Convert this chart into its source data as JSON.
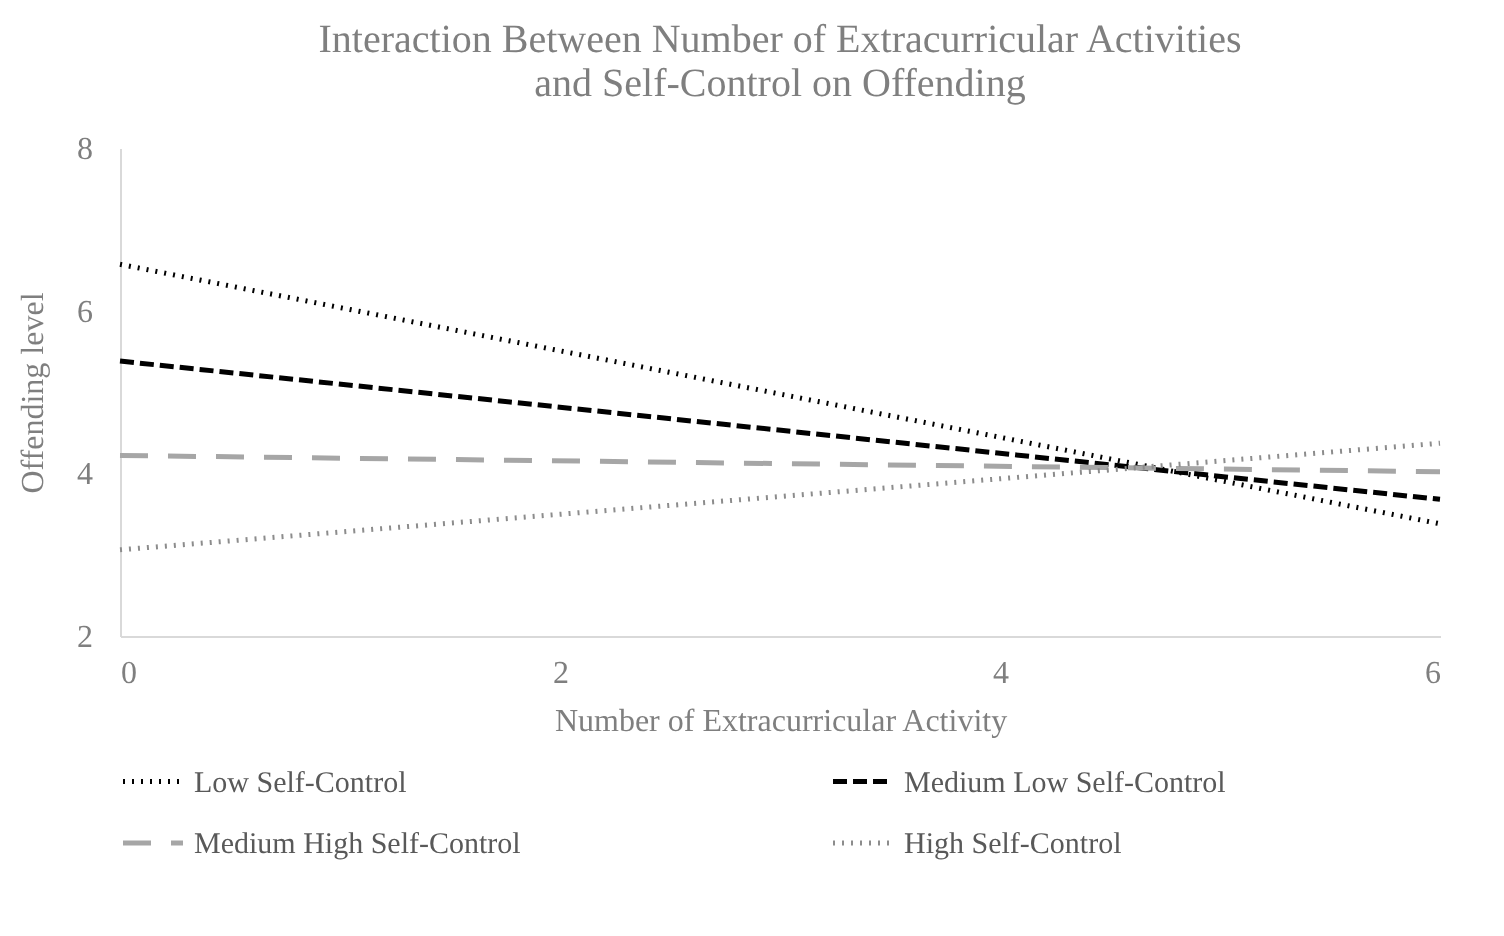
{
  "chart_data": {
    "type": "line",
    "title": "Interaction Between Number of Extracurricular Activities and Self-Control on Offending",
    "xlabel": "Number of Extracurricular Activity",
    "ylabel": "Offending level",
    "x": [
      0,
      6
    ],
    "xlim": [
      0,
      6
    ],
    "xticks": [
      0,
      2,
      4,
      6
    ],
    "ylim": [
      2,
      8
    ],
    "yticks": [
      2,
      4,
      6,
      8
    ],
    "grid": false,
    "legend": "bottom",
    "marker": "none",
    "series": [
      {
        "name": "Low Self-Control",
        "color": "#000000",
        "line_style": "dotted",
        "values": [
          6.57,
          3.38
        ]
      },
      {
        "name": "Medium Low Self-Control",
        "color": "#000000",
        "line_style": "dashed",
        "values": [
          5.38,
          3.68
        ]
      },
      {
        "name": "Medium High Self-Control",
        "color": "#a6a6a6",
        "line_style": "dashed",
        "values": [
          4.22,
          4.02
        ]
      },
      {
        "name": "High Self-Control",
        "color": "#8c8c8c",
        "line_style": "dotted",
        "values": [
          3.06,
          4.37
        ]
      }
    ]
  }
}
